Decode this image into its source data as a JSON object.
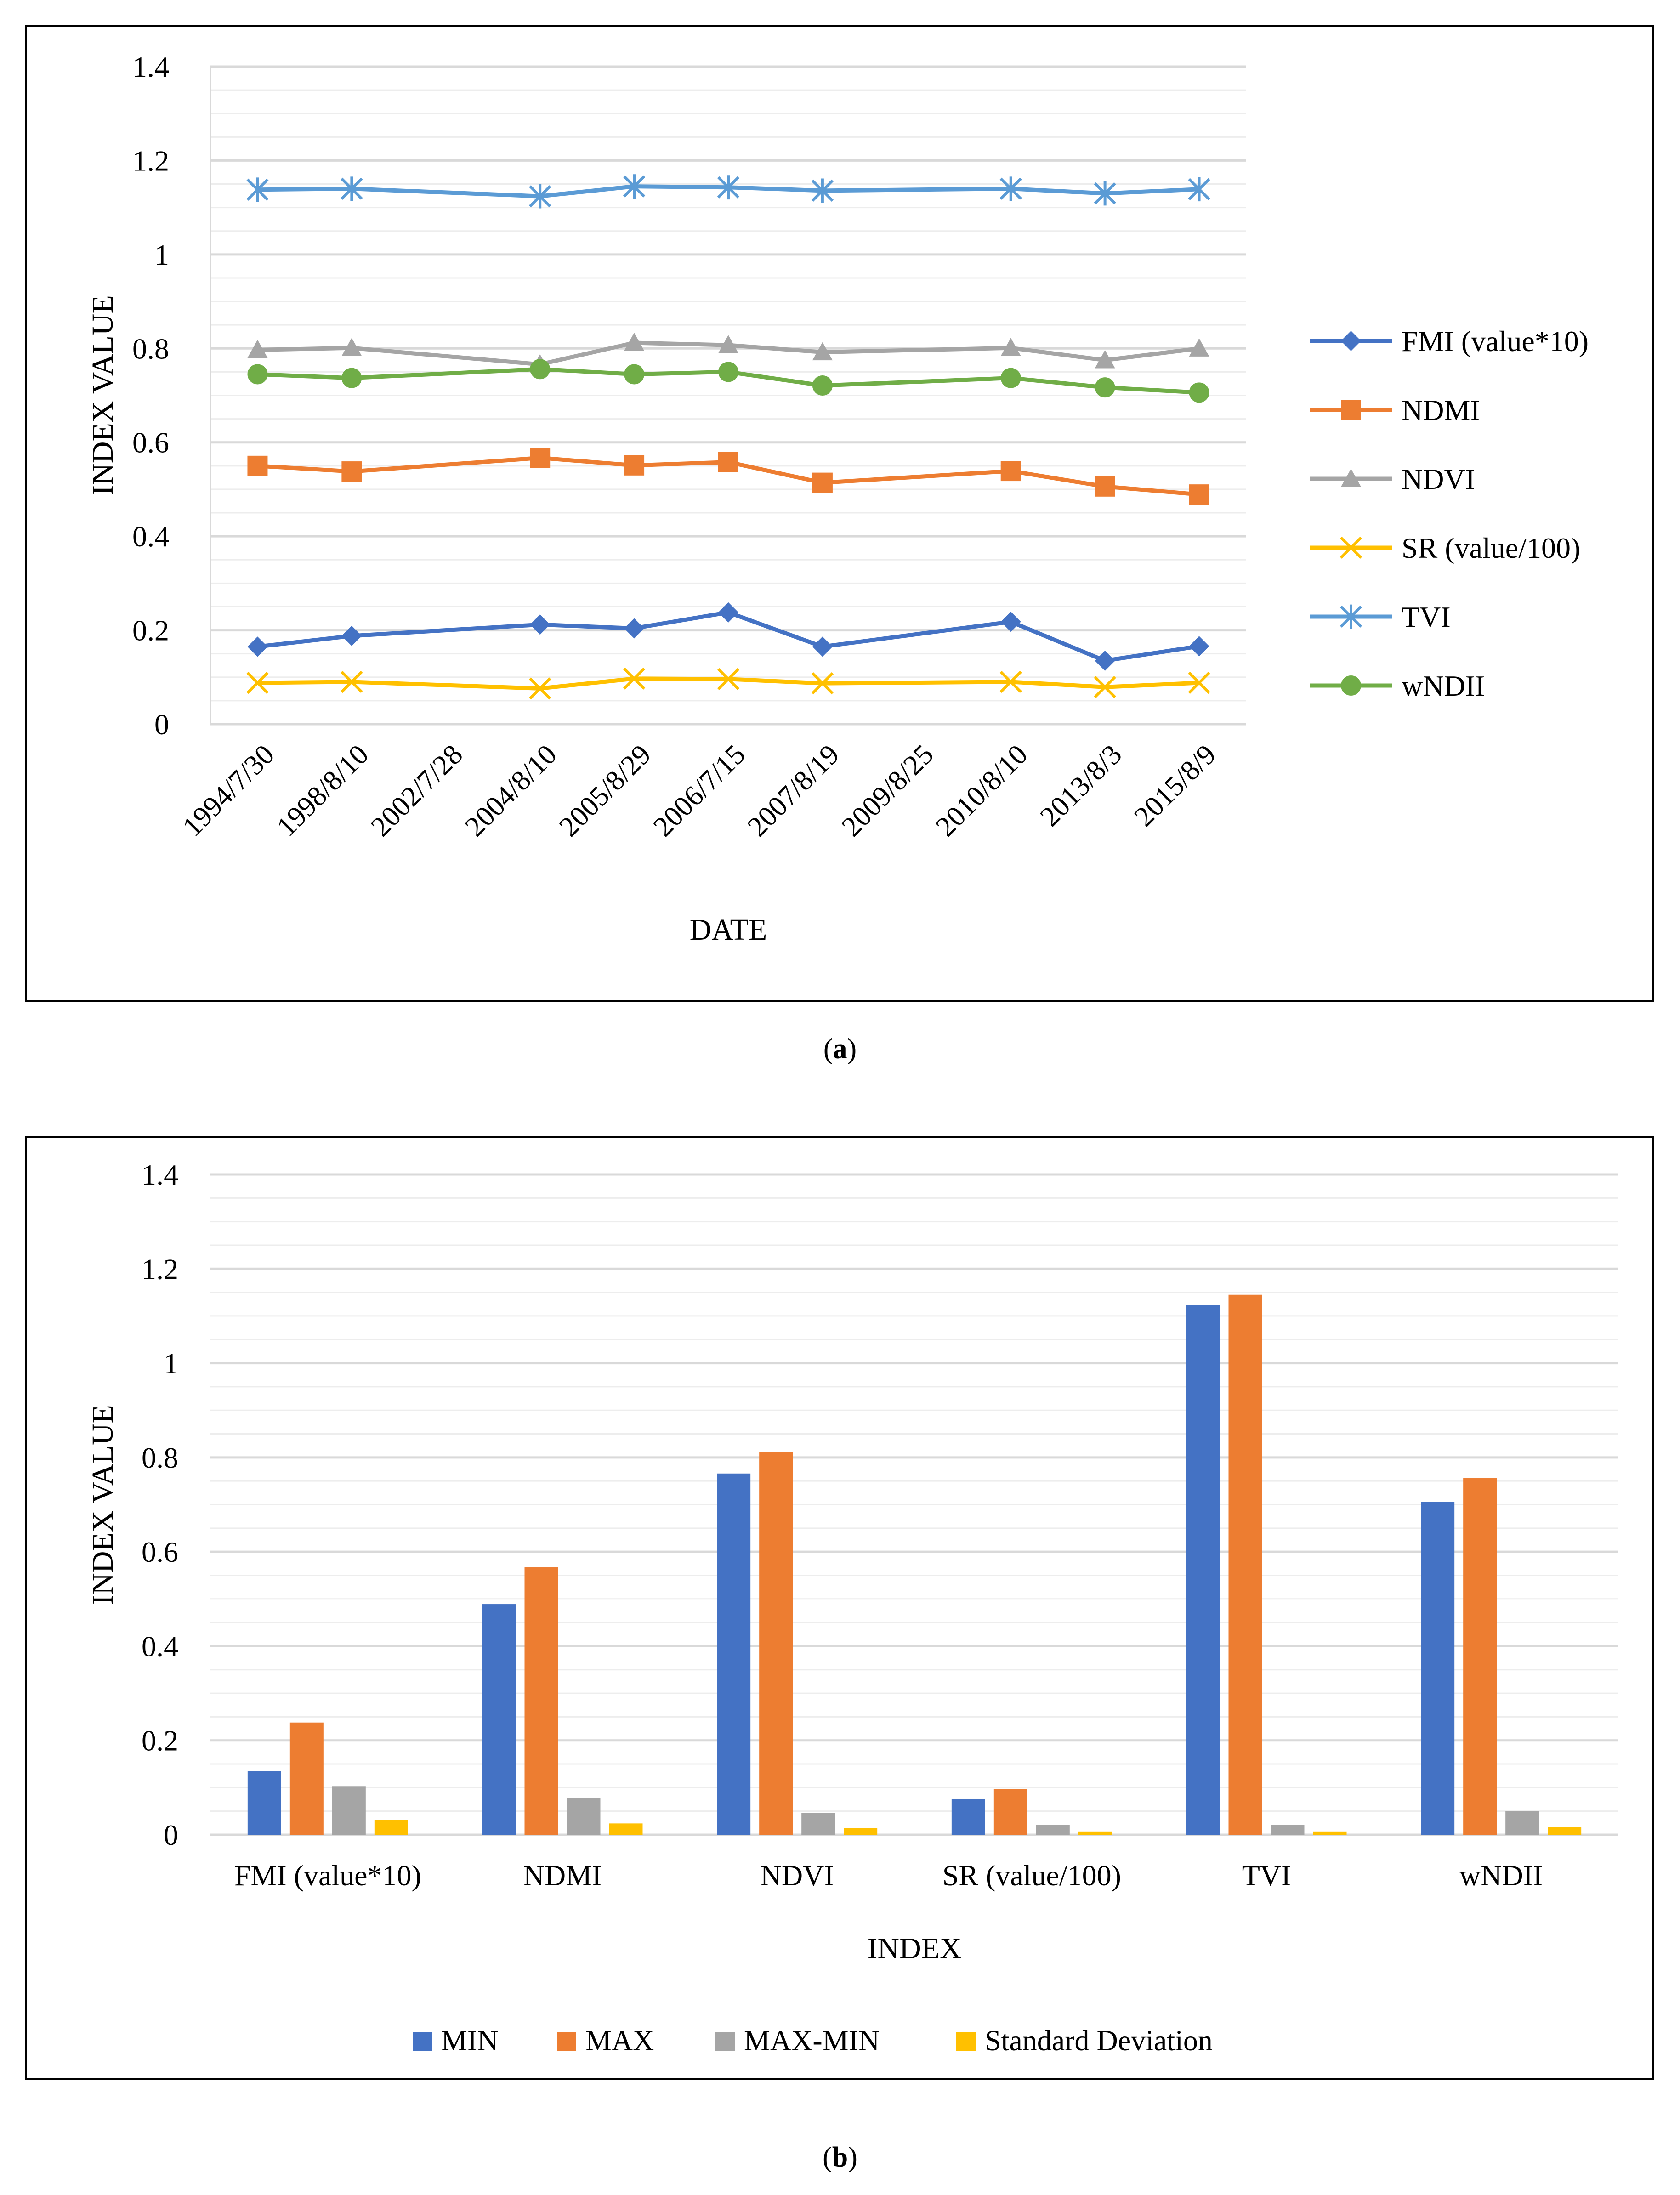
{
  "figure_a": {
    "caption_label": "a",
    "chart_data": {
      "type": "line",
      "categories": [
        "1994/7/30",
        "1998/8/10",
        "2002/7/28",
        "2004/8/10",
        "2005/8/29",
        "2006/7/15",
        "2007/8/19",
        "2009/8/25",
        "2010/8/10",
        "2013/8/3",
        "2015/8/9"
      ],
      "xlabel": "DATE",
      "ylabel": "INDEX VALUE",
      "ylim": [
        0,
        1.4
      ],
      "y_ticks": [
        "0",
        "0.2",
        "0.4",
        "0.6",
        "0.8",
        "1",
        "1.2",
        "1.4"
      ],
      "legend_position": "right",
      "series": [
        {
          "name": "FMI (value*10)",
          "color": "#4472C4",
          "marker": "diamond",
          "values": [
            0.165,
            0.188,
            null,
            0.212,
            0.204,
            0.238,
            0.165,
            null,
            0.218,
            0.135,
            0.166
          ]
        },
        {
          "name": "NDMI",
          "color": "#ED7D31",
          "marker": "square",
          "values": [
            0.55,
            0.538,
            null,
            0.567,
            0.551,
            0.558,
            0.514,
            null,
            0.539,
            0.506,
            0.489
          ]
        },
        {
          "name": "NDVI",
          "color": "#A5A5A5",
          "marker": "triangle",
          "values": [
            0.797,
            0.801,
            null,
            0.766,
            0.812,
            0.807,
            0.792,
            null,
            0.801,
            0.775,
            0.8
          ]
        },
        {
          "name": "SR (value/100)",
          "color": "#FFC000",
          "marker": "x",
          "values": [
            0.088,
            0.09,
            null,
            0.076,
            0.097,
            0.096,
            0.087,
            null,
            0.09,
            0.079,
            0.088
          ]
        },
        {
          "name": "TVI",
          "color": "#5B9BD5",
          "marker": "asterisk",
          "values": [
            1.138,
            1.14,
            null,
            1.124,
            1.145,
            1.143,
            1.136,
            null,
            1.14,
            1.13,
            1.139
          ]
        },
        {
          "name": "wNDII",
          "color": "#70AD47",
          "marker": "circle",
          "values": [
            0.745,
            0.737,
            null,
            0.756,
            0.745,
            0.75,
            0.721,
            null,
            0.737,
            0.717,
            0.706
          ]
        }
      ]
    }
  },
  "figure_b": {
    "caption_label": "b",
    "chart_data": {
      "type": "bar",
      "categories": [
        "FMI (value*10)",
        "NDMI",
        "NDVI",
        "SR (value/100)",
        "TVI",
        "wNDII"
      ],
      "xlabel": "INDEX",
      "ylabel": "INDEX VALUE",
      "ylim": [
        0,
        1.4
      ],
      "y_ticks": [
        "0",
        "0.2",
        "0.4",
        "0.6",
        "0.8",
        "1",
        "1.2",
        "1.4"
      ],
      "legend_position": "bottom",
      "series": [
        {
          "name": "MIN",
          "color": "#4472C4",
          "values": [
            0.135,
            0.489,
            0.766,
            0.076,
            1.124,
            0.706
          ]
        },
        {
          "name": "MAX",
          "color": "#ED7D31",
          "values": [
            0.238,
            0.567,
            0.812,
            0.097,
            1.145,
            0.756
          ]
        },
        {
          "name": "MAX-MIN",
          "color": "#A5A5A5",
          "values": [
            0.103,
            0.078,
            0.046,
            0.021,
            0.021,
            0.05
          ]
        },
        {
          "name": "Standard Deviation",
          "color": "#FFC000",
          "values": [
            0.032,
            0.024,
            0.014,
            0.007,
            0.007,
            0.016
          ]
        }
      ]
    }
  }
}
